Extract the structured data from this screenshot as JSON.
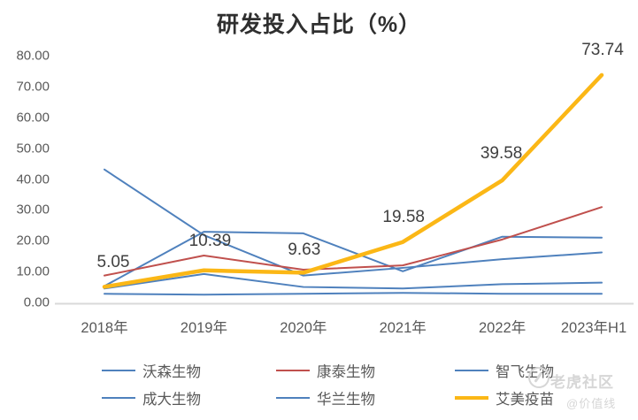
{
  "title": "研发投入占比（%）",
  "watermark": {
    "line1": "老虎社区",
    "line2": "@价值线"
  },
  "chart_data": {
    "type": "line",
    "title": "研发投入占比（%）",
    "categories": [
      "2018年",
      "2019年",
      "2020年",
      "2021年",
      "2022年",
      "2023年H1"
    ],
    "y_ticks": [
      "80.00",
      "70.00",
      "60.00",
      "50.00",
      "40.00",
      "30.00",
      "20.00",
      "10.00",
      "0.00"
    ],
    "ylim": [
      0,
      80
    ],
    "grid": false,
    "legend_position": "bottom",
    "axis_color": "#d9d9d9",
    "series": [
      {
        "name": "沃森生物",
        "color": "#4f81bd",
        "width": 2,
        "values": [
          43.1,
          21.8,
          8.7,
          11.2,
          14.0,
          16.2
        ]
      },
      {
        "name": "智飞生物",
        "color": "#4f81bd",
        "width": 2,
        "values": [
          2.8,
          2.5,
          2.8,
          3.1,
          2.8,
          2.8
        ]
      },
      {
        "name": "成大生物",
        "color": "#4f81bd",
        "width": 2,
        "values": [
          5.3,
          22.9,
          22.4,
          10.1,
          21.3,
          21.0
        ]
      },
      {
        "name": "华兰生物",
        "color": "#4f81bd",
        "width": 2,
        "values": [
          4.5,
          9.2,
          5.0,
          4.5,
          5.9,
          6.4
        ]
      },
      {
        "name": "康泰生物",
        "color": "#c0504d",
        "width": 2,
        "values": [
          8.7,
          15.2,
          10.6,
          12.0,
          20.4,
          30.9
        ]
      },
      {
        "name": "艾美疫苗",
        "color": "#fbb716",
        "width": 4.5,
        "values": [
          5.05,
          10.39,
          9.63,
          19.58,
          39.58,
          73.74
        ],
        "data_labels": [
          "5.05",
          "10.39",
          "9.63",
          "19.58",
          "39.58",
          "73.74"
        ]
      }
    ],
    "legend_order": [
      "沃森生物",
      "康泰生物",
      "智飞生物",
      "成大生物",
      "华兰生物",
      "艾美疫苗"
    ]
  }
}
